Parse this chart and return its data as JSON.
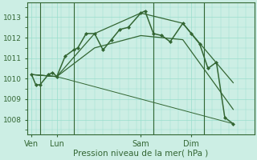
{
  "background_color": "#cceee4",
  "grid_color": "#99ddcc",
  "line_color": "#336633",
  "marker_color": "#336633",
  "xlabel": "Pression niveau de la mer( hPa )",
  "yticks": [
    1008,
    1009,
    1010,
    1011,
    1012,
    1013
  ],
  "xtick_labels": [
    "Ven",
    "Lun",
    "Sam",
    "Dim"
  ],
  "xtick_positions": [
    0.5,
    3.5,
    13.5,
    19.5
  ],
  "vline_positions": [
    1.5,
    5.5,
    15.0,
    21.0
  ],
  "ylim": [
    1007.3,
    1013.7
  ],
  "xlim": [
    0,
    27
  ],
  "series0": {
    "x": [
      0.5,
      1.0,
      1.5,
      2.5,
      3.0,
      3.5,
      4.5,
      5.5,
      6.0,
      7.0,
      8.0,
      9.0,
      10.0,
      11.0,
      12.0,
      13.5,
      14.0,
      15.0,
      16.0,
      17.0,
      18.5,
      19.5,
      20.5,
      21.5,
      22.5,
      23.5,
      24.5
    ],
    "y": [
      1010.2,
      1009.7,
      1009.7,
      1010.2,
      1010.3,
      1010.1,
      1011.1,
      1011.4,
      1011.5,
      1012.2,
      1012.2,
      1011.4,
      1011.9,
      1012.4,
      1012.5,
      1013.2,
      1013.3,
      1012.2,
      1012.1,
      1011.8,
      1012.7,
      1012.2,
      1011.7,
      1010.5,
      1010.8,
      1008.1,
      1007.8
    ]
  },
  "trend_lines": [
    {
      "x": [
        0.5,
        3.5,
        8.0,
        13.5,
        18.5,
        24.5
      ],
      "y": [
        1010.2,
        1010.1,
        1012.2,
        1013.2,
        1012.7,
        1009.8
      ],
      "linestyle": "-",
      "linewidth": 0.9
    },
    {
      "x": [
        0.5,
        3.5,
        8.0,
        13.5,
        18.5,
        24.5
      ],
      "y": [
        1010.2,
        1010.1,
        1011.5,
        1012.1,
        1011.9,
        1008.5
      ],
      "linestyle": "-",
      "linewidth": 0.9
    },
    {
      "x": [
        0.5,
        3.5,
        24.5
      ],
      "y": [
        1010.2,
        1010.1,
        1007.8
      ],
      "linestyle": "-",
      "linewidth": 0.7
    }
  ],
  "xlabel_fontsize": 7.5,
  "ytick_fontsize": 6.5,
  "xtick_fontsize": 7.0
}
